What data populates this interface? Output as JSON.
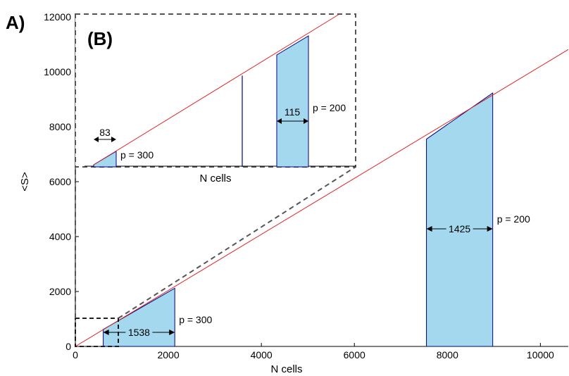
{
  "chart_data": {
    "type": "area",
    "panel_labels": {
      "main": "A)",
      "inset": "(B)"
    },
    "xlabel": "N cells",
    "ylabel": "<S>",
    "xlim": [
      0,
      10600
    ],
    "ylim": [
      0,
      12000
    ],
    "x_ticks": [
      "0",
      "2000",
      "4000",
      "6000",
      "8000",
      "10000"
    ],
    "y_ticks": [
      "0",
      "2000",
      "4000",
      "6000",
      "8000",
      "10000",
      "12000"
    ],
    "grid": false,
    "colors": {
      "line": "#e02020",
      "fill": "#a3d8ee",
      "edge": "#000080",
      "dashed": "#555555"
    },
    "reference_line": {
      "slope": 1.02,
      "color": "#e02020"
    },
    "regions": [
      {
        "x_start": 600,
        "x_end": 2138,
        "y_start": 620,
        "y_end": 2120,
        "width_label": "1538",
        "p_label": "p = 300"
      },
      {
        "x_start": 7550,
        "x_end": 8975,
        "y_start": 7550,
        "y_end": 9230,
        "width_label": "1425",
        "p_label": "p = 200"
      }
    ],
    "inset": {
      "xlabel": "N cells",
      "regions": [
        {
          "width_label": "83",
          "p_label": "p = 300"
        },
        {
          "width_label": "115",
          "p_label": "p = 200"
        }
      ]
    }
  }
}
